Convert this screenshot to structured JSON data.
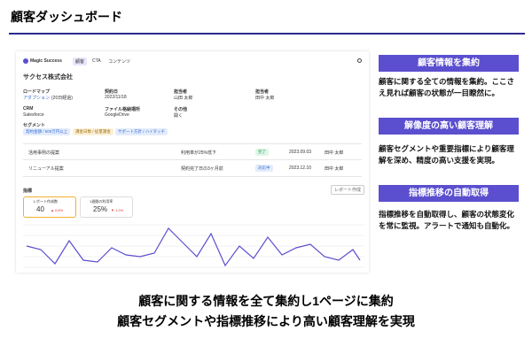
{
  "header": {
    "title": "顧客ダッシュボード"
  },
  "screenshot": {
    "app_name": "Magic Success",
    "nav": [
      "顧客",
      "CTA",
      "コンテンツ"
    ],
    "company": "サクセス株式会社",
    "fields": [
      {
        "label": "ロードマップ",
        "value": "アダプション",
        "note": "(20日経過)"
      },
      {
        "label": "契約日",
        "value": "2022/11/18"
      },
      {
        "label": "担当者",
        "value": "山田 太郎"
      },
      {
        "label": "担当者",
        "value": "田中 太郎"
      },
      {
        "label": "CRM",
        "value": "Salesforce"
      },
      {
        "label": "ファイル格納場所",
        "value": "GoogleDrive"
      },
      {
        "label": "その他",
        "value": "開く"
      }
    ],
    "segment_label": "セグメント",
    "segments": [
      "契約金額 / 500万円以上",
      "課金日数 / 従量課金",
      "サポート方針 / ハイタッチ"
    ],
    "tasks": [
      [
        "活用事例の提案",
        "利用率が25%低下",
        "完了",
        "2023.09.03",
        "田中 太郎"
      ],
      [
        "リニューアル提案",
        "契約完了日の3ヶ月前",
        "対応中",
        "2023.12.10",
        "田中 太郎"
      ]
    ],
    "metrics_title": "指標",
    "report_button": "レポート作成",
    "metrics": [
      {
        "label": "レポート作成数",
        "value": "40",
        "change": "▲ 0.6%"
      },
      {
        "label": "1週間の利用率",
        "value": "25%",
        "change": "▼ 1.2%"
      }
    ]
  },
  "features": [
    {
      "title": "顧客情報を集約",
      "text": "顧客に関する全ての情報を集約。ここさえ見れば顧客の状態が一目瞭然に。"
    },
    {
      "title": "解像度の高い顧客理解",
      "text": "顧客セグメントや重要指標により顧客理解を深め、精度の高い支援を実現。"
    },
    {
      "title": "指標推移の自動取得",
      "text": "指標推移を自動取得し、顧客の状態変化を常に監視。アラートで通知も自動化。"
    }
  ],
  "footer": [
    "顧客に関する情報を全て集約し1ページに集約",
    "顧客セグメントや指標推移により高い顧客理解を実現"
  ]
}
